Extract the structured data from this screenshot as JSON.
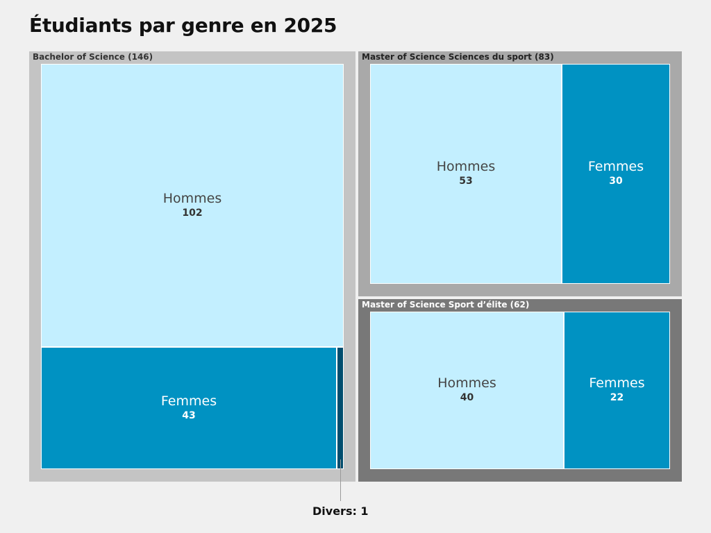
{
  "chart_data": {
    "type": "treemap",
    "title": "Étudiants par genre en 2025",
    "colors": {
      "hommes": "#c3efff",
      "femmes": "#0092c2",
      "divers": "#004d6e",
      "group_light": "#c4c4c4",
      "group_mid": "#a9a9a9",
      "group_dark": "#787878"
    },
    "groups": [
      {
        "label": "Bachelor of Science (146)",
        "name": "Bachelor of Science",
        "total": 146,
        "children": [
          {
            "category": "Hommes",
            "value": 102
          },
          {
            "category": "Femmes",
            "value": 43
          },
          {
            "category": "Divers",
            "value": 1
          }
        ]
      },
      {
        "label": "Master of Science Sciences du sport (83)",
        "name": "Master of Science Sciences du sport",
        "total": 83,
        "children": [
          {
            "category": "Hommes",
            "value": 53
          },
          {
            "category": "Femmes",
            "value": 30
          }
        ]
      },
      {
        "label": "Master of Science Sport d’élite (62)",
        "name": "Master of Science Sport d’élite",
        "total": 62,
        "children": [
          {
            "category": "Hommes",
            "value": 40
          },
          {
            "category": "Femmes",
            "value": 22
          }
        ]
      }
    ],
    "callout": "Divers: 1"
  }
}
